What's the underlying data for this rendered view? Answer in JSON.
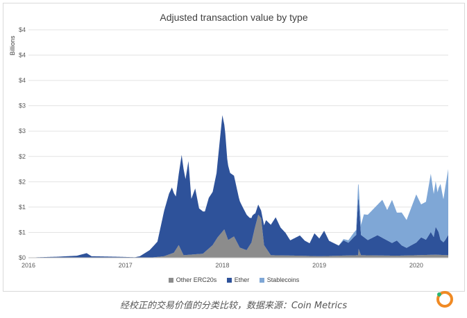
{
  "caption": "经校正的交易价值的分类比较，数据来源：Coin Metrics",
  "chart_data": {
    "type": "area",
    "stacked": true,
    "title": "Adjusted transaction value by type",
    "ylabel": "Billions",
    "xlabel": "",
    "ylim": [
      0,
      4.5
    ],
    "xlim": [
      2016.0,
      2020.33
    ],
    "ytick_values": [
      0,
      0.5,
      1,
      1.5,
      2,
      2.5,
      3,
      3.5,
      4,
      4.5
    ],
    "ytick_labels": [
      "$0",
      "$1",
      "$1",
      "$2",
      "$2",
      "$3",
      "$3",
      "$4",
      "$4",
      "$4"
    ],
    "xticks": [
      {
        "value": 2016,
        "label": "2016"
      },
      {
        "value": 2017,
        "label": "2017"
      },
      {
        "value": 2018,
        "label": "2018"
      },
      {
        "value": 2019,
        "label": "2019"
      },
      {
        "value": 2020,
        "label": "2020"
      }
    ],
    "grid": true,
    "legend_position": "bottom",
    "series": [
      {
        "name": "Other ERC20s",
        "color": "#8c8c8c",
        "points": [
          [
            2016.0,
            0
          ],
          [
            2017.25,
            0
          ],
          [
            2017.4,
            0.03
          ],
          [
            2017.5,
            0.1
          ],
          [
            2017.55,
            0.25
          ],
          [
            2017.6,
            0.05
          ],
          [
            2017.8,
            0.08
          ],
          [
            2017.9,
            0.25
          ],
          [
            2017.95,
            0.4
          ],
          [
            2018.02,
            0.56
          ],
          [
            2018.06,
            0.35
          ],
          [
            2018.12,
            0.42
          ],
          [
            2018.18,
            0.2
          ],
          [
            2018.25,
            0.15
          ],
          [
            2018.3,
            0.3
          ],
          [
            2018.33,
            0.55
          ],
          [
            2018.37,
            0.85
          ],
          [
            2018.4,
            0.78
          ],
          [
            2018.43,
            0.25
          ],
          [
            2018.5,
            0.05
          ],
          [
            2018.8,
            0.04
          ],
          [
            2019.0,
            0.03
          ],
          [
            2019.4,
            0.05
          ],
          [
            2019.4,
            0.2
          ],
          [
            2019.43,
            0.05
          ],
          [
            2019.8,
            0.04
          ],
          [
            2020.0,
            0.05
          ],
          [
            2020.2,
            0.06
          ],
          [
            2020.33,
            0.05
          ]
        ]
      },
      {
        "name": "Ether",
        "color": "#2e529a",
        "points": [
          [
            2016.0,
            0
          ],
          [
            2016.1,
            0.01
          ],
          [
            2016.3,
            0.02
          ],
          [
            2016.5,
            0.04
          ],
          [
            2016.6,
            0.09
          ],
          [
            2016.65,
            0.03
          ],
          [
            2016.9,
            0.02
          ],
          [
            2017.1,
            0.01
          ],
          [
            2017.15,
            0.03
          ],
          [
            2017.25,
            0.15
          ],
          [
            2017.33,
            0.3
          ],
          [
            2017.4,
            0.9
          ],
          [
            2017.45,
            1.2
          ],
          [
            2017.48,
            1.3
          ],
          [
            2017.52,
            1.05
          ],
          [
            2017.55,
            1.4
          ],
          [
            2017.58,
            1.9
          ],
          [
            2017.62,
            1.5
          ],
          [
            2017.65,
            1.85
          ],
          [
            2017.68,
            1.1
          ],
          [
            2017.72,
            1.3
          ],
          [
            2017.76,
            0.9
          ],
          [
            2017.82,
            0.8
          ],
          [
            2017.86,
            1.0
          ],
          [
            2017.9,
            1.05
          ],
          [
            2017.94,
            1.3
          ],
          [
            2017.97,
            1.8
          ],
          [
            2018.0,
            2.3
          ],
          [
            2018.03,
            1.95
          ],
          [
            2018.05,
            1.55
          ],
          [
            2018.08,
            1.3
          ],
          [
            2018.12,
            1.2
          ],
          [
            2018.17,
            0.95
          ],
          [
            2018.2,
            0.85
          ],
          [
            2018.25,
            0.7
          ],
          [
            2018.28,
            0.55
          ],
          [
            2018.31,
            0.45
          ],
          [
            2018.34,
            0.25
          ],
          [
            2018.37,
            0.2
          ],
          [
            2018.4,
            0.15
          ],
          [
            2018.45,
            0.55
          ],
          [
            2018.5,
            0.6
          ],
          [
            2018.55,
            0.75
          ],
          [
            2018.6,
            0.55
          ],
          [
            2018.65,
            0.45
          ],
          [
            2018.7,
            0.3
          ],
          [
            2018.75,
            0.35
          ],
          [
            2018.8,
            0.4
          ],
          [
            2018.85,
            0.3
          ],
          [
            2018.9,
            0.25
          ],
          [
            2018.95,
            0.45
          ],
          [
            2019.0,
            0.35
          ],
          [
            2019.05,
            0.5
          ],
          [
            2019.1,
            0.3
          ],
          [
            2019.15,
            0.25
          ],
          [
            2019.2,
            0.2
          ],
          [
            2019.25,
            0.3
          ],
          [
            2019.3,
            0.25
          ],
          [
            2019.35,
            0.35
          ],
          [
            2019.38,
            0.4
          ],
          [
            2019.4,
            1.1
          ],
          [
            2019.43,
            0.4
          ],
          [
            2019.5,
            0.3
          ],
          [
            2019.55,
            0.35
          ],
          [
            2019.6,
            0.4
          ],
          [
            2019.65,
            0.35
          ],
          [
            2019.7,
            0.3
          ],
          [
            2019.75,
            0.25
          ],
          [
            2019.8,
            0.3
          ],
          [
            2019.85,
            0.2
          ],
          [
            2019.9,
            0.15
          ],
          [
            2019.95,
            0.2
          ],
          [
            2020.0,
            0.25
          ],
          [
            2020.05,
            0.35
          ],
          [
            2020.1,
            0.3
          ],
          [
            2020.15,
            0.45
          ],
          [
            2020.18,
            0.35
          ],
          [
            2020.2,
            0.55
          ],
          [
            2020.23,
            0.45
          ],
          [
            2020.25,
            0.3
          ],
          [
            2020.28,
            0.25
          ],
          [
            2020.3,
            0.3
          ],
          [
            2020.33,
            0.4
          ]
        ]
      },
      {
        "name": "Stablecoins",
        "color": "#7fa7d6",
        "points": [
          [
            2016.0,
            0
          ],
          [
            2019.2,
            0
          ],
          [
            2019.3,
            0.05
          ],
          [
            2019.38,
            0.1
          ],
          [
            2019.4,
            0.3
          ],
          [
            2019.43,
            0.2
          ],
          [
            2019.46,
            0.45
          ],
          [
            2019.5,
            0.5
          ],
          [
            2019.55,
            0.55
          ],
          [
            2019.6,
            0.6
          ],
          [
            2019.65,
            0.75
          ],
          [
            2019.7,
            0.6
          ],
          [
            2019.75,
            0.85
          ],
          [
            2019.8,
            0.55
          ],
          [
            2019.85,
            0.65
          ],
          [
            2019.9,
            0.55
          ],
          [
            2019.95,
            0.75
          ],
          [
            2020.0,
            0.95
          ],
          [
            2020.05,
            0.65
          ],
          [
            2020.1,
            0.75
          ],
          [
            2020.15,
            1.15
          ],
          [
            2020.18,
            0.85
          ],
          [
            2020.2,
            0.9
          ],
          [
            2020.22,
            0.75
          ],
          [
            2020.25,
            1.1
          ],
          [
            2020.28,
            0.85
          ],
          [
            2020.3,
            1.05
          ],
          [
            2020.33,
            1.3
          ]
        ]
      }
    ]
  }
}
